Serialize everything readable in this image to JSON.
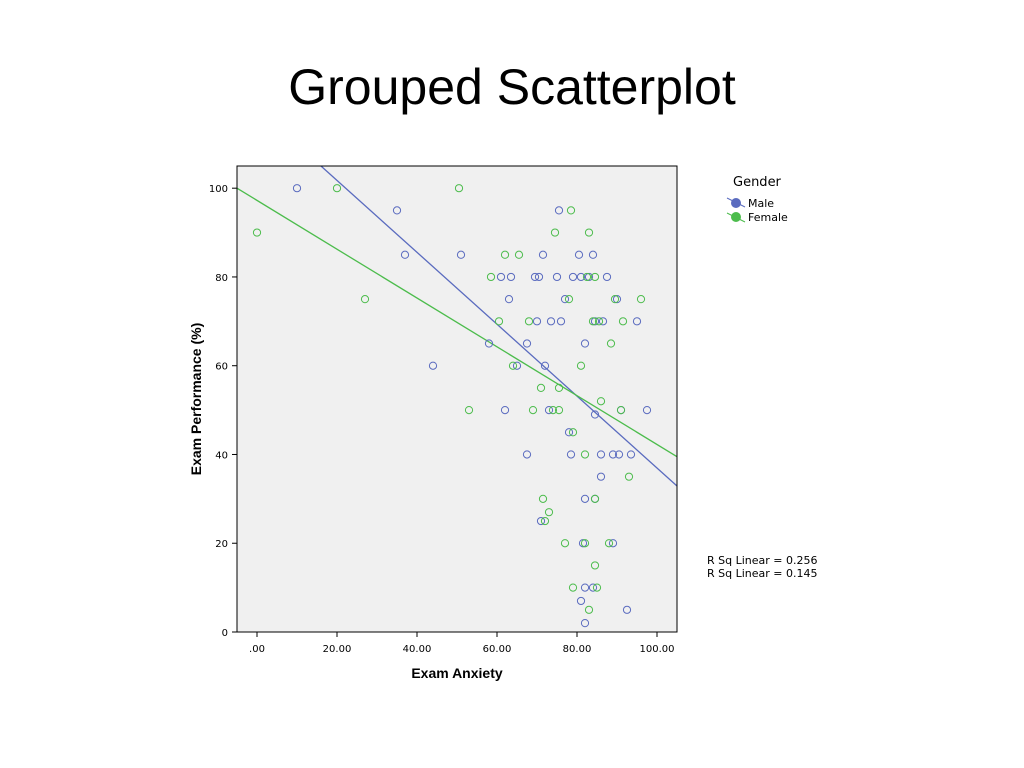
{
  "slide": {
    "title": "Grouped Scatterplot"
  },
  "colors": {
    "male": "#5a6bbf",
    "female": "#4cbc4c",
    "plot_bg": "#f0f0f0"
  },
  "chart_data": {
    "type": "scatter",
    "xlabel": "Exam Anxiety",
    "ylabel": "Exam Performance (%)",
    "xlim": [
      -5,
      105
    ],
    "ylim": [
      0,
      105
    ],
    "xticks": [
      0,
      20,
      40,
      60,
      80,
      100
    ],
    "xtick_labels": [
      ".00",
      "20.00",
      "40.00",
      "60.00",
      "80.00",
      "100.00"
    ],
    "yticks": [
      0,
      20,
      40,
      60,
      80,
      100
    ],
    "ytick_labels": [
      "0",
      "20",
      "40",
      "60",
      "80",
      "100"
    ],
    "grid": false,
    "legend": {
      "title": "Gender",
      "position": "top-right"
    },
    "series": [
      {
        "name": "Male",
        "color": "#5a6bbf",
        "fit": {
          "y_at_x_min": 122,
          "slope": -0.81
        },
        "r2_label": "R Sq Linear = 0.256",
        "points": [
          [
            10,
            100
          ],
          [
            35,
            95
          ],
          [
            37,
            85
          ],
          [
            44,
            60
          ],
          [
            51,
            85
          ],
          [
            58,
            65
          ],
          [
            61,
            80
          ],
          [
            62,
            50
          ],
          [
            63,
            75
          ],
          [
            63.5,
            80
          ],
          [
            65,
            60
          ],
          [
            67.5,
            40
          ],
          [
            67.5,
            65
          ],
          [
            69.5,
            80
          ],
          [
            70,
            70
          ],
          [
            70.5,
            80
          ],
          [
            71,
            25
          ],
          [
            71.5,
            85
          ],
          [
            72,
            60
          ],
          [
            73,
            50
          ],
          [
            73.5,
            70
          ],
          [
            75,
            80
          ],
          [
            75.5,
            95
          ],
          [
            76,
            70
          ],
          [
            77,
            75
          ],
          [
            78,
            45
          ],
          [
            78.5,
            40
          ],
          [
            79,
            80
          ],
          [
            80.5,
            85
          ],
          [
            81,
            80
          ],
          [
            81,
            7
          ],
          [
            81.5,
            20
          ],
          [
            82,
            2
          ],
          [
            82,
            65
          ],
          [
            82,
            30
          ],
          [
            82,
            10
          ],
          [
            83,
            80
          ],
          [
            84,
            10
          ],
          [
            84,
            85
          ],
          [
            84.5,
            49
          ],
          [
            84.5,
            30
          ],
          [
            84.5,
            70
          ],
          [
            86,
            35
          ],
          [
            86,
            40
          ],
          [
            86.5,
            70
          ],
          [
            87.5,
            80
          ],
          [
            89,
            40
          ],
          [
            89,
            20
          ],
          [
            90,
            75
          ],
          [
            90.5,
            40
          ],
          [
            91,
            50
          ],
          [
            92.5,
            5
          ],
          [
            93.5,
            40
          ],
          [
            95,
            70
          ],
          [
            97.5,
            50
          ]
        ]
      },
      {
        "name": "Female",
        "color": "#4cbc4c",
        "fit": {
          "y_at_x_min": 100,
          "slope": -0.55
        },
        "r2_label": "R Sq Linear = 0.145",
        "points": [
          [
            0,
            90
          ],
          [
            20,
            100
          ],
          [
            27,
            75
          ],
          [
            50.5,
            100
          ],
          [
            53,
            50
          ],
          [
            58.5,
            80
          ],
          [
            60.5,
            70
          ],
          [
            62,
            85
          ],
          [
            64,
            60
          ],
          [
            65.5,
            85
          ],
          [
            68,
            70
          ],
          [
            69,
            50
          ],
          [
            71,
            55
          ],
          [
            71.5,
            30
          ],
          [
            72,
            25
          ],
          [
            73,
            27
          ],
          [
            74,
            50
          ],
          [
            74.5,
            90
          ],
          [
            75.5,
            55
          ],
          [
            75.5,
            50
          ],
          [
            77,
            20
          ],
          [
            78,
            75
          ],
          [
            78.5,
            95
          ],
          [
            79,
            10
          ],
          [
            79,
            45
          ],
          [
            81,
            60
          ],
          [
            82,
            40
          ],
          [
            82,
            20
          ],
          [
            82.5,
            80
          ],
          [
            83,
            90
          ],
          [
            83,
            5
          ],
          [
            84,
            70
          ],
          [
            84.5,
            15
          ],
          [
            84.5,
            30
          ],
          [
            84.5,
            80
          ],
          [
            85,
            10
          ],
          [
            85.5,
            70
          ],
          [
            86,
            52
          ],
          [
            88,
            20
          ],
          [
            88.5,
            65
          ],
          [
            89.5,
            75
          ],
          [
            91,
            50
          ],
          [
            91.5,
            70
          ],
          [
            93,
            35
          ],
          [
            96,
            75
          ]
        ]
      }
    ]
  }
}
